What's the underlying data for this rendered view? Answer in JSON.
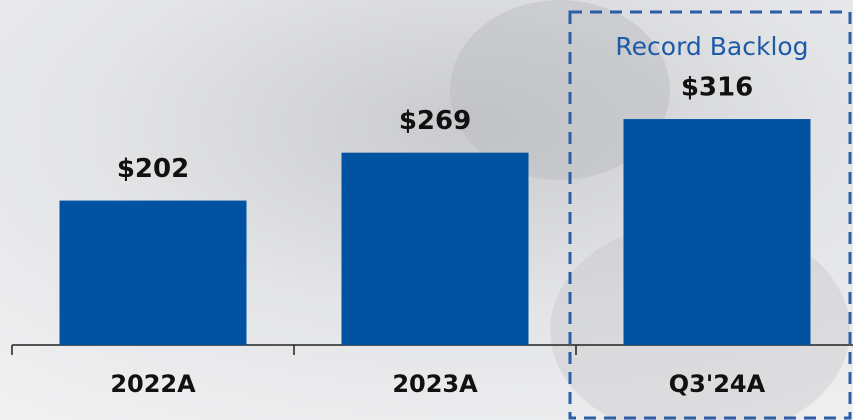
{
  "chart_data": {
    "type": "bar",
    "categories": [
      "2022A",
      "2023A",
      "Q3'24A"
    ],
    "values": [
      202,
      269,
      316
    ],
    "value_labels": [
      "$202",
      "$269",
      "$316"
    ],
    "color": "#0152a1",
    "annotation": "Record Backlog"
  }
}
